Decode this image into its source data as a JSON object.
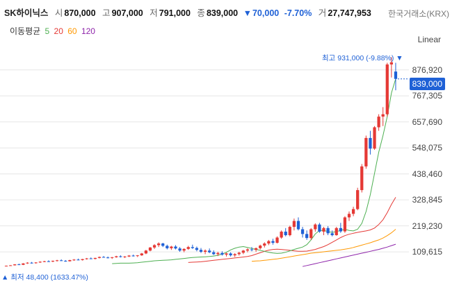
{
  "header": {
    "name": "SK하이닉스",
    "open_label": "시",
    "open": "870,000",
    "high_label": "고",
    "high": "907,000",
    "low_label": "저",
    "low": "791,000",
    "close_label": "종",
    "close": "839,000",
    "change_arrow": "▼",
    "change": "70,000",
    "change_pct": "-7.70%",
    "volume_label": "거",
    "volume": "27,747,953"
  },
  "exchange": "한국거래소(KRX)",
  "ma_legend": {
    "title": "이동평균",
    "items": [
      {
        "label": "5",
        "color": "#4caf50"
      },
      {
        "label": "20",
        "color": "#e53935"
      },
      {
        "label": "60",
        "color": "#ff9800"
      },
      {
        "label": "120",
        "color": "#8e24aa"
      }
    ]
  },
  "scale_mode": "Linear",
  "colors": {
    "up": "#e53935",
    "down": "#1f61d6",
    "grid": "#e6e6e6"
  },
  "chart_data": {
    "type": "candlestick",
    "y_ticks": [
      "876,920",
      "767,305",
      "657,690",
      "548,075",
      "438,460",
      "328,845",
      "219,230",
      "109,615"
    ],
    "y_tick_values": [
      876920,
      767305,
      657690,
      548075,
      438460,
      328845,
      219230,
      109615
    ],
    "ylim": [
      0,
      1000000
    ],
    "last_price_label": "839,000",
    "max_annotation": "최고 931,000 (-9.88%) ▼",
    "min_annotation": "▲ 최저 48,400 (1633.47%)",
    "candles": [
      [
        49000,
        52000,
        48400,
        51000
      ],
      [
        51000,
        54000,
        50000,
        53000
      ],
      [
        53000,
        58000,
        52000,
        57000
      ],
      [
        57000,
        60000,
        54000,
        55000
      ],
      [
        55000,
        62000,
        54000,
        61000
      ],
      [
        61000,
        66000,
        59000,
        64000
      ],
      [
        64000,
        67000,
        60000,
        62000
      ],
      [
        62000,
        66000,
        60000,
        65000
      ],
      [
        65000,
        70000,
        63000,
        68000
      ],
      [
        68000,
        72000,
        66000,
        70000
      ],
      [
        70000,
        74000,
        67000,
        69000
      ],
      [
        69000,
        73000,
        66000,
        72000
      ],
      [
        72000,
        76000,
        69000,
        74000
      ],
      [
        74000,
        78000,
        71000,
        72000
      ],
      [
        72000,
        75000,
        68000,
        70000
      ],
      [
        70000,
        76000,
        69000,
        75000
      ],
      [
        75000,
        79000,
        72000,
        77000
      ],
      [
        77000,
        81000,
        74000,
        75000
      ],
      [
        75000,
        80000,
        73000,
        79000
      ],
      [
        79000,
        84000,
        77000,
        82000
      ],
      [
        82000,
        86000,
        79000,
        80000
      ],
      [
        80000,
        85000,
        78000,
        84000
      ],
      [
        84000,
        90000,
        82000,
        88000
      ],
      [
        88000,
        92000,
        85000,
        86000
      ],
      [
        86000,
        90000,
        82000,
        84000
      ],
      [
        84000,
        88000,
        80000,
        87000
      ],
      [
        87000,
        93000,
        85000,
        91000
      ],
      [
        91000,
        95000,
        86000,
        88000
      ],
      [
        88000,
        92000,
        84000,
        90000
      ],
      [
        90000,
        96000,
        88000,
        94000
      ],
      [
        94000,
        98000,
        90000,
        92000
      ],
      [
        92000,
        96000,
        88000,
        95000
      ],
      [
        95000,
        105000,
        93000,
        103000
      ],
      [
        103000,
        118000,
        100000,
        115000
      ],
      [
        115000,
        130000,
        112000,
        128000
      ],
      [
        128000,
        142000,
        122000,
        138000
      ],
      [
        138000,
        150000,
        130000,
        145000
      ],
      [
        145000,
        148000,
        130000,
        135000
      ],
      [
        135000,
        140000,
        120000,
        125000
      ],
      [
        125000,
        135000,
        118000,
        132000
      ],
      [
        132000,
        138000,
        120000,
        124000
      ],
      [
        124000,
        130000,
        110000,
        115000
      ],
      [
        115000,
        125000,
        108000,
        122000
      ],
      [
        122000,
        135000,
        118000,
        130000
      ],
      [
        130000,
        140000,
        122000,
        126000
      ],
      [
        126000,
        132000,
        112000,
        118000
      ],
      [
        118000,
        126000,
        105000,
        110000
      ],
      [
        110000,
        120000,
        100000,
        115000
      ],
      [
        115000,
        124000,
        104000,
        108000
      ],
      [
        108000,
        116000,
        96000,
        100000
      ],
      [
        100000,
        110000,
        92000,
        105000
      ],
      [
        105000,
        112000,
        94000,
        98000
      ],
      [
        98000,
        106000,
        90000,
        103000
      ],
      [
        103000,
        108000,
        90000,
        95000
      ],
      [
        95000,
        104000,
        88000,
        100000
      ],
      [
        100000,
        110000,
        94000,
        106000
      ],
      [
        106000,
        118000,
        100000,
        115000
      ],
      [
        115000,
        125000,
        108000,
        120000
      ],
      [
        120000,
        130000,
        112000,
        118000
      ],
      [
        118000,
        128000,
        110000,
        125000
      ],
      [
        125000,
        140000,
        120000,
        136000
      ],
      [
        136000,
        150000,
        128000,
        145000
      ],
      [
        145000,
        160000,
        138000,
        155000
      ],
      [
        155000,
        165000,
        140000,
        148000
      ],
      [
        148000,
        175000,
        145000,
        170000
      ],
      [
        170000,
        200000,
        165000,
        195000
      ],
      [
        195000,
        210000,
        175000,
        180000
      ],
      [
        180000,
        220000,
        175000,
        215000
      ],
      [
        215000,
        250000,
        200000,
        240000
      ],
      [
        240000,
        255000,
        200000,
        205000
      ],
      [
        205000,
        215000,
        170000,
        185000
      ],
      [
        185000,
        200000,
        160000,
        168000
      ],
      [
        168000,
        210000,
        160000,
        205000
      ],
      [
        205000,
        230000,
        195000,
        225000
      ],
      [
        225000,
        232000,
        190000,
        195000
      ],
      [
        195000,
        215000,
        180000,
        210000
      ],
      [
        210000,
        218000,
        180000,
        188000
      ],
      [
        188000,
        200000,
        175000,
        180000
      ],
      [
        180000,
        215000,
        178000,
        210000
      ],
      [
        210000,
        232000,
        190000,
        196000
      ],
      [
        196000,
        260000,
        190000,
        255000
      ],
      [
        255000,
        280000,
        240000,
        270000
      ],
      [
        270000,
        300000,
        260000,
        290000
      ],
      [
        290000,
        380000,
        285000,
        370000
      ],
      [
        370000,
        480000,
        360000,
        470000
      ],
      [
        470000,
        600000,
        460000,
        590000
      ],
      [
        590000,
        620000,
        520000,
        545000
      ],
      [
        545000,
        640000,
        540000,
        635000
      ],
      [
        635000,
        690000,
        620000,
        680000
      ],
      [
        680000,
        720000,
        640000,
        690000
      ],
      [
        690000,
        907000,
        680000,
        900000
      ],
      [
        900000,
        931000,
        845000,
        909000
      ],
      [
        870000,
        907000,
        791000,
        839000
      ]
    ],
    "ma5": [
      60000,
      61000,
      62000,
      62000,
      62000,
      63000,
      64000,
      66000,
      68000,
      70000,
      72000,
      73000,
      74000,
      75000,
      76000,
      78000,
      80000,
      82000,
      84000,
      86000,
      87000,
      88000,
      89000,
      90000,
      92000,
      95000,
      100000,
      108000,
      118000,
      125000,
      130000,
      132000,
      128000,
      124000,
      120000,
      116000,
      112000,
      108000,
      105000,
      103000,
      104000,
      108000,
      114000,
      120000,
      125000,
      130000,
      140000,
      160000,
      185000,
      200000,
      200000,
      195000,
      192000,
      195000,
      200000,
      205000,
      200000,
      198000,
      205000,
      230000,
      280000,
      350000,
      440000,
      530000,
      600000,
      680000,
      780000,
      840000
    ],
    "ma20": [
      65000,
      66000,
      67000,
      68000,
      70000,
      72000,
      74000,
      76000,
      78000,
      80000,
      82000,
      84000,
      86000,
      88000,
      90000,
      94000,
      100000,
      106000,
      112000,
      117000,
      120000,
      121000,
      120000,
      118000,
      116000,
      114000,
      112000,
      112000,
      113000,
      116000,
      120000,
      126000,
      132000,
      140000,
      150000,
      160000,
      170000,
      178000,
      184000,
      188000,
      192000,
      195000,
      198000,
      202000,
      210000,
      225000,
      245000,
      275000,
      310000,
      340000
    ],
    "ma60": [
      70000,
      71000,
      72000,
      74000,
      76000,
      78000,
      80000,
      83000,
      86000,
      89000,
      92000,
      95000,
      98000,
      101000,
      104000,
      106000,
      108000,
      110000,
      112000,
      114000,
      116000,
      118000,
      121000,
      124000,
      128000,
      133000,
      138000,
      143000,
      148000,
      154000,
      160000,
      168000,
      178000,
      190000,
      205000
    ],
    "ma120": [
      48000,
      52000,
      56000,
      60000,
      64000,
      68000,
      72000,
      76000,
      80000,
      84000,
      88000,
      92000,
      96000,
      100000,
      104000,
      108000,
      112000,
      116000,
      120000,
      125000,
      130000,
      136000,
      142000
    ]
  }
}
